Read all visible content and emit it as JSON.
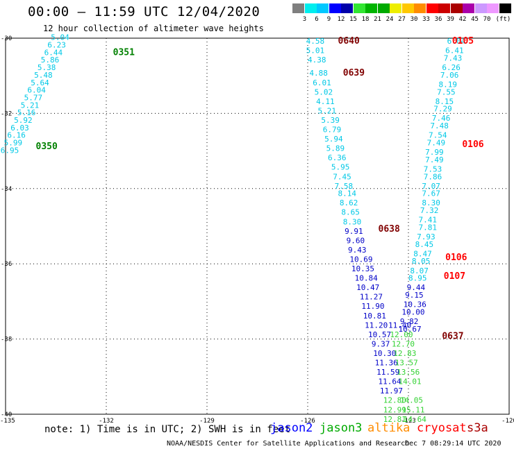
{
  "header": {
    "title": "00:00 – 11:59 UTC 12/04/2020",
    "subtitle": "12 hour collection of altimeter wave heights"
  },
  "legend": {
    "colors": [
      "#7f7f7f",
      "#00eeee",
      "#00c8ff",
      "#0000ff",
      "#0000aa",
      "#32e632",
      "#00b400",
      "#00aa00",
      "#eeee00",
      "#ffc800",
      "#ff8c00",
      "#ff0000",
      "#cc0000",
      "#aa0000",
      "#aa00aa",
      "#cc99ff",
      "#ee99ff",
      "#000000"
    ],
    "labels": [
      "3",
      "6",
      "9",
      "12",
      "15",
      "18",
      "21",
      "24",
      "27",
      "30",
      "33",
      "36",
      "39",
      "42",
      "45",
      "70",
      "(ft)"
    ]
  },
  "note": "note:  1) Time is in UTC; 2) SWH is in feet",
  "satellites": [
    {
      "name": "jason2",
      "color": "#0000ff"
    },
    {
      "name": "jason3",
      "color": "#00aa00"
    },
    {
      "name": "altika",
      "color": "#ff8c00"
    },
    {
      "name": "cryosat",
      "color": "#ff0000"
    },
    {
      "name": "s3a",
      "color": "#aa0000"
    }
  ],
  "footer": {
    "left": "NOAA/NESDIS Center for Satellite Applications and Research",
    "right": "Dec  7 08:29:14 UTC 2020"
  },
  "chart_data": {
    "type": "scatter",
    "title": "00:00 – 11:59 UTC 12/04/2020",
    "subtitle": "12 hour collection of altimeter wave heights",
    "xlim": [
      -135,
      -120
    ],
    "ylim": [
      -40,
      -30
    ],
    "xticks": [
      "-135",
      "-132",
      "-129",
      "-126",
      "-123",
      "-120"
    ],
    "yticks": [
      "-30",
      "-32",
      "-34",
      "-36",
      "-38",
      "-40"
    ],
    "grid": true,
    "labels": [
      {
        "text": "0351",
        "color": "#008000",
        "lon": -131.8,
        "lat": -30.45,
        "bold": true
      },
      {
        "text": "0350",
        "color": "#008000",
        "lon": -134.1,
        "lat": -32.95,
        "bold": true
      },
      {
        "text": "0640",
        "color": "#800000",
        "lon": -125.1,
        "lat": -30.15,
        "bold": true
      },
      {
        "text": "0639",
        "color": "#800000",
        "lon": -124.95,
        "lat": -31.0,
        "bold": true
      },
      {
        "text": "0638",
        "color": "#800000",
        "lon": -123.9,
        "lat": -35.15,
        "bold": true
      },
      {
        "text": "0637",
        "color": "#800000",
        "lon": -122.0,
        "lat": -38.0,
        "bold": true
      },
      {
        "text": "0105",
        "color": "#ff0000",
        "lon": -121.7,
        "lat": -30.15,
        "bold": true
      },
      {
        "text": "0106",
        "color": "#ff0000",
        "lon": -121.4,
        "lat": -32.9,
        "bold": true
      },
      {
        "text": "0106",
        "color": "#ff0000",
        "lon": -121.9,
        "lat": -35.9,
        "bold": true
      },
      {
        "text": "0107",
        "color": "#ff0000",
        "lon": -121.95,
        "lat": -36.4,
        "bold": true
      }
    ],
    "series": [
      {
        "name": "jason3",
        "track": "west",
        "points": [
          {
            "v": "5.04",
            "lon": -133.65,
            "lat": -30.05
          },
          {
            "v": "6.23",
            "lon": -133.75,
            "lat": -30.25
          },
          {
            "v": "6.44",
            "lon": -133.85,
            "lat": -30.45
          },
          {
            "v": "5.86",
            "lon": -133.95,
            "lat": -30.65
          },
          {
            "v": "5.38",
            "lon": -134.05,
            "lat": -30.85
          },
          {
            "v": "5.48",
            "lon": -134.15,
            "lat": -31.05
          },
          {
            "v": "5.64",
            "lon": -134.25,
            "lat": -31.25
          },
          {
            "v": "6.04",
            "lon": -134.35,
            "lat": -31.45
          },
          {
            "v": "5.77",
            "lon": -134.45,
            "lat": -31.65
          },
          {
            "v": "5.21",
            "lon": -134.55,
            "lat": -31.85
          },
          {
            "v": "5.16",
            "lon": -134.65,
            "lat": -32.05
          },
          {
            "v": "5.92",
            "lon": -134.75,
            "lat": -32.25
          },
          {
            "v": "6.03",
            "lon": -134.85,
            "lat": -32.45
          },
          {
            "v": "6.16",
            "lon": -134.95,
            "lat": -32.65
          },
          {
            "v": "5.99",
            "lon": -135.05,
            "lat": -32.85
          },
          {
            "v": "6.95",
            "lon": -135.15,
            "lat": -33.05
          }
        ]
      },
      {
        "name": "s3a",
        "track": "middle",
        "points": [
          {
            "v": "4.58",
            "lon": -126.05,
            "lat": -30.15
          },
          {
            "v": "5.01",
            "lon": -126.05,
            "lat": -30.4
          },
          {
            "v": "4.38",
            "lon": -126.0,
            "lat": -30.65
          },
          {
            "v": "4.88",
            "lon": -125.95,
            "lat": -31.0
          },
          {
            "v": "6.01",
            "lon": -125.85,
            "lat": -31.25
          },
          {
            "v": "5.02",
            "lon": -125.8,
            "lat": -31.5
          },
          {
            "v": "4.11",
            "lon": -125.75,
            "lat": -31.75
          },
          {
            "v": "5.21",
            "lon": -125.7,
            "lat": -32.0
          },
          {
            "v": "5.39",
            "lon": -125.6,
            "lat": -32.25
          },
          {
            "v": "6.79",
            "lon": -125.55,
            "lat": -32.5
          },
          {
            "v": "5.94",
            "lon": -125.5,
            "lat": -32.75
          },
          {
            "v": "5.89",
            "lon": -125.45,
            "lat": -33.0
          },
          {
            "v": "6.36",
            "lon": -125.4,
            "lat": -33.25
          },
          {
            "v": "5.95",
            "lon": -125.3,
            "lat": -33.5
          },
          {
            "v": "7.45",
            "lon": -125.25,
            "lat": -33.75
          },
          {
            "v": "7.58",
            "lon": -125.2,
            "lat": -34.0
          },
          {
            "v": "8.14",
            "lon": -125.1,
            "lat": -34.2
          },
          {
            "v": "8.62",
            "lon": -125.05,
            "lat": -34.45
          },
          {
            "v": "8.65",
            "lon": -125.0,
            "lat": -34.7
          },
          {
            "v": "8.30",
            "lon": -124.95,
            "lat": -34.95
          },
          {
            "v": "9.91",
            "lon": -124.9,
            "lat": -35.2
          },
          {
            "v": "9.60",
            "lon": -124.85,
            "lat": -35.45
          },
          {
            "v": "9.43",
            "lon": -124.8,
            "lat": -35.7
          },
          {
            "v": "10.69",
            "lon": -124.75,
            "lat": -35.95
          },
          {
            "v": "10.35",
            "lon": -124.7,
            "lat": -36.2
          },
          {
            "v": "10.84",
            "lon": -124.6,
            "lat": -36.45
          },
          {
            "v": "10.47",
            "lon": -124.55,
            "lat": -36.7
          },
          {
            "v": "11.27",
            "lon": -124.45,
            "lat": -36.95
          },
          {
            "v": "11.90",
            "lon": -124.4,
            "lat": -37.2
          },
          {
            "v": "10.81",
            "lon": -124.35,
            "lat": -37.45
          },
          {
            "v": "11.20",
            "lon": -124.3,
            "lat": -37.7
          },
          {
            "v": "10.57",
            "lon": -124.2,
            "lat": -37.95
          },
          {
            "v": "9.37",
            "lon": -124.1,
            "lat": -38.2
          },
          {
            "v": "10.30",
            "lon": -124.05,
            "lat": -38.45
          },
          {
            "v": "11.36",
            "lon": -124.0,
            "lat": -38.7
          },
          {
            "v": "11.59",
            "lon": -123.95,
            "lat": -38.95
          },
          {
            "v": "11.64",
            "lon": -123.9,
            "lat": -39.2
          },
          {
            "v": "11.97",
            "lon": -123.85,
            "lat": -39.45
          }
        ]
      },
      {
        "name": "jason3",
        "track": "middle-south",
        "points": [
          {
            "v": "11.40",
            "lon": -123.6,
            "lat": -37.7
          },
          {
            "v": "12.00",
            "lon": -123.55,
            "lat": -37.95
          },
          {
            "v": "12.70",
            "lon": -123.5,
            "lat": -38.2
          },
          {
            "v": "12.83",
            "lon": -123.45,
            "lat": -38.45
          },
          {
            "v": "13.57",
            "lon": -123.4,
            "lat": -38.7
          },
          {
            "v": "13.56",
            "lon": -123.35,
            "lat": -38.95
          },
          {
            "v": "14.01",
            "lon": -123.3,
            "lat": -39.2
          },
          {
            "v": "12.80",
            "lon": -123.75,
            "lat": -39.7
          },
          {
            "v": "14.05",
            "lon": -123.25,
            "lat": -39.7
          },
          {
            "v": "12.99",
            "lon": -123.75,
            "lat": -39.95
          },
          {
            "v": "15.11",
            "lon": -123.2,
            "lat": -39.95
          },
          {
            "v": "12.81",
            "lon": -123.75,
            "lat": -40.2
          },
          {
            "v": "14.64",
            "lon": -123.15,
            "lat": -40.2
          }
        ]
      },
      {
        "name": "cryosat",
        "track": "east",
        "points": [
          {
            "v": "6.04",
            "lon": -121.85,
            "lat": -30.15
          },
          {
            "v": "6.41",
            "lon": -121.9,
            "lat": -30.4
          },
          {
            "v": "7.43",
            "lon": -121.95,
            "lat": -30.6
          },
          {
            "v": "6.26",
            "lon": -122.0,
            "lat": -30.85
          },
          {
            "v": "7.06",
            "lon": -122.05,
            "lat": -31.05
          },
          {
            "v": "8.19",
            "lon": -122.1,
            "lat": -31.3
          },
          {
            "v": "7.55",
            "lon": -122.15,
            "lat": -31.5
          },
          {
            "v": "8.15",
            "lon": -122.2,
            "lat": -31.75
          },
          {
            "v": "7.29",
            "lon": -122.25,
            "lat": -31.95
          },
          {
            "v": "7.46",
            "lon": -122.3,
            "lat": -32.2
          },
          {
            "v": "7.48",
            "lon": -122.35,
            "lat": -32.4
          },
          {
            "v": "7.54",
            "lon": -122.4,
            "lat": -32.65
          },
          {
            "v": "7.49",
            "lon": -122.45,
            "lat": -32.85
          },
          {
            "v": "7.99",
            "lon": -122.5,
            "lat": -33.1
          },
          {
            "v": "7.49",
            "lon": -122.5,
            "lat": -33.3
          },
          {
            "v": "7.53",
            "lon": -122.55,
            "lat": -33.55
          },
          {
            "v": "7.86",
            "lon": -122.55,
            "lat": -33.75
          },
          {
            "v": "7.07",
            "lon": -122.6,
            "lat": -34.0
          },
          {
            "v": "7.67",
            "lon": -122.6,
            "lat": -34.2
          },
          {
            "v": "8.30",
            "lon": -122.6,
            "lat": -34.45
          },
          {
            "v": "7.32",
            "lon": -122.65,
            "lat": -34.65
          },
          {
            "v": "7.41",
            "lon": -122.7,
            "lat": -34.9
          },
          {
            "v": "7.81",
            "lon": -122.7,
            "lat": -35.1
          },
          {
            "v": "7.93",
            "lon": -122.75,
            "lat": -35.35
          },
          {
            "v": "8.45",
            "lon": -122.8,
            "lat": -35.55
          },
          {
            "v": "8.47",
            "lon": -122.85,
            "lat": -35.8
          },
          {
            "v": "8.05",
            "lon": -122.9,
            "lat": -36.0
          },
          {
            "v": "8.07",
            "lon": -122.95,
            "lat": -36.25
          },
          {
            "v": "8.95",
            "lon": -123.0,
            "lat": -36.45
          },
          {
            "v": "9.44",
            "lon": -123.05,
            "lat": -36.7
          },
          {
            "v": "9.15",
            "lon": -123.1,
            "lat": -36.9
          },
          {
            "v": "10.36",
            "lon": -123.15,
            "lat": -37.15
          },
          {
            "v": "10.00",
            "lon": -123.2,
            "lat": -37.35
          },
          {
            "v": "9.82",
            "lon": -123.25,
            "lat": -37.6
          },
          {
            "v": "10.67",
            "lon": -123.3,
            "lat": -37.8
          }
        ]
      }
    ]
  }
}
